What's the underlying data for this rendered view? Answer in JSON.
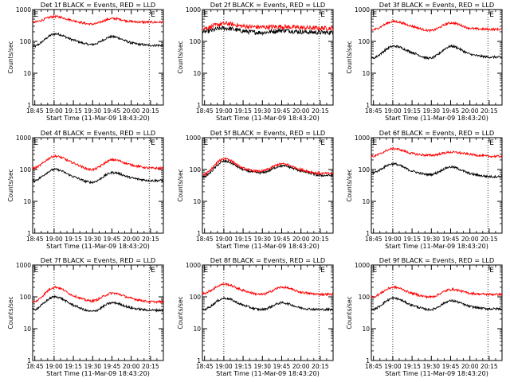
{
  "figure": {
    "x_axis_label": "Start Time (11-Mar-09 18:43:20)",
    "y_axis_label": "Counts/sec",
    "x_tick_labels": [
      "18:45",
      "19:00",
      "19:15",
      "19:30",
      "19:45",
      "20:00",
      "20:15"
    ],
    "y_tick_labels": [
      "1",
      "10",
      "100",
      "1000"
    ],
    "marker_letter": "E",
    "colors": {
      "events": "#000000",
      "lld": "#ff0000",
      "axes": "#000000",
      "background": "#ffffff"
    }
  },
  "chart_data": [
    {
      "type": "line",
      "title": "Det 1f BLACK = Events, RED = LLD",
      "xlabel": "Start Time (11-Mar-09 18:43:20)",
      "ylabel": "Counts/sec",
      "yscale": "log",
      "ylim": [
        1,
        1000
      ],
      "x_unit": "time",
      "x_range": [
        "18:43:20",
        "20:25"
      ],
      "x": [
        "18:45",
        "19:00",
        "19:15",
        "19:30",
        "19:45",
        "20:00",
        "20:15"
      ],
      "series": [
        {
          "name": "Events",
          "color": "#000000",
          "values": [
            70,
            170,
            110,
            80,
            140,
            90,
            75
          ]
        },
        {
          "name": "LLD",
          "color": "#ff0000",
          "values": [
            400,
            600,
            450,
            350,
            520,
            420,
            400
          ]
        }
      ]
    },
    {
      "type": "line",
      "title": "Det 2f BLACK = Events, RED = LLD",
      "xlabel": "Start Time (11-Mar-09 18:43:20)",
      "ylabel": "Counts/sec",
      "yscale": "log",
      "ylim": [
        1,
        1000
      ],
      "x_unit": "time",
      "x_range": [
        "18:43:20",
        "20:25"
      ],
      "x": [
        "18:45",
        "19:00",
        "19:15",
        "19:30",
        "19:45",
        "20:00",
        "20:15"
      ],
      "series": [
        {
          "name": "Events",
          "color": "#000000",
          "values": [
            200,
            260,
            210,
            190,
            220,
            200,
            190
          ]
        },
        {
          "name": "LLD",
          "color": "#ff0000",
          "values": [
            260,
            360,
            300,
            280,
            290,
            270,
            260
          ]
        }
      ]
    },
    {
      "type": "line",
      "title": "Det 3f BLACK = Events, RED = LLD",
      "xlabel": "Start Time (11-Mar-09 18:43:20)",
      "ylabel": "Counts/sec",
      "yscale": "log",
      "ylim": [
        1,
        1000
      ],
      "x_unit": "time",
      "x_range": [
        "18:43:20",
        "20:25"
      ],
      "x": [
        "18:45",
        "19:00",
        "19:15",
        "19:30",
        "19:45",
        "20:00",
        "20:15"
      ],
      "series": [
        {
          "name": "Events",
          "color": "#000000",
          "values": [
            30,
            70,
            45,
            30,
            70,
            40,
            32
          ]
        },
        {
          "name": "LLD",
          "color": "#ff0000",
          "values": [
            230,
            420,
            300,
            220,
            380,
            260,
            240
          ]
        }
      ]
    },
    {
      "type": "line",
      "title": "Det 4f BLACK = Events, RED = LLD",
      "xlabel": "Start Time (11-Mar-09 18:43:20)",
      "ylabel": "Counts/sec",
      "yscale": "log",
      "ylim": [
        1,
        1000
      ],
      "x_unit": "time",
      "x_range": [
        "18:43:20",
        "20:25"
      ],
      "x": [
        "18:45",
        "19:00",
        "19:15",
        "19:30",
        "19:45",
        "20:00",
        "20:15"
      ],
      "series": [
        {
          "name": "Events",
          "color": "#000000",
          "values": [
            45,
            100,
            60,
            40,
            80,
            55,
            45
          ]
        },
        {
          "name": "LLD",
          "color": "#ff0000",
          "values": [
            110,
            260,
            160,
            100,
            200,
            140,
            110
          ]
        }
      ]
    },
    {
      "type": "line",
      "title": "Det 5f BLACK = Events, RED = LLD",
      "xlabel": "Start Time (11-Mar-09 18:43:20)",
      "ylabel": "Counts/sec",
      "yscale": "log",
      "ylim": [
        1,
        1000
      ],
      "x_unit": "time",
      "x_range": [
        "18:43:20",
        "20:25"
      ],
      "x": [
        "18:45",
        "19:00",
        "19:15",
        "19:30",
        "19:45",
        "20:00",
        "20:15"
      ],
      "series": [
        {
          "name": "Events",
          "color": "#000000",
          "values": [
            60,
            180,
            100,
            80,
            130,
            90,
            65
          ]
        },
        {
          "name": "LLD",
          "color": "#ff0000",
          "values": [
            70,
            220,
            110,
            90,
            150,
            100,
            75
          ]
        }
      ]
    },
    {
      "type": "line",
      "title": "Det 6f BLACK = Events, RED = LLD",
      "xlabel": "Start Time (11-Mar-09 18:43:20)",
      "ylabel": "Counts/sec",
      "yscale": "log",
      "ylim": [
        1,
        1000
      ],
      "x_unit": "time",
      "x_range": [
        "18:43:20",
        "20:25"
      ],
      "x": [
        "18:45",
        "19:00",
        "19:15",
        "19:30",
        "19:45",
        "20:00",
        "20:15"
      ],
      "series": [
        {
          "name": "Events",
          "color": "#000000",
          "values": [
            80,
            150,
            90,
            70,
            120,
            75,
            60
          ]
        },
        {
          "name": "LLD",
          "color": "#ff0000",
          "values": [
            260,
            450,
            320,
            280,
            350,
            300,
            260
          ]
        }
      ]
    },
    {
      "type": "line",
      "title": "Det 7f BLACK = Events, RED = LLD",
      "xlabel": "Start Time (11-Mar-09 18:43:20)",
      "ylabel": "Counts/sec",
      "yscale": "log",
      "ylim": [
        1,
        1000
      ],
      "x_unit": "time",
      "x_range": [
        "18:43:20",
        "20:25"
      ],
      "x": [
        "18:45",
        "19:00",
        "19:15",
        "19:30",
        "19:45",
        "20:00",
        "20:15"
      ],
      "series": [
        {
          "name": "Events",
          "color": "#000000",
          "values": [
            40,
            100,
            55,
            35,
            65,
            45,
            38
          ]
        },
        {
          "name": "LLD",
          "color": "#ff0000",
          "values": [
            70,
            200,
            110,
            75,
            130,
            90,
            70
          ]
        }
      ]
    },
    {
      "type": "line",
      "title": "Det 8f BLACK = Events, RED = LLD",
      "xlabel": "Start Time (11-Mar-09 18:43:20)",
      "ylabel": "Counts/sec",
      "yscale": "log",
      "ylim": [
        1,
        1000
      ],
      "x_unit": "time",
      "x_range": [
        "18:43:20",
        "20:25"
      ],
      "x": [
        "18:45",
        "19:00",
        "19:15",
        "19:30",
        "19:45",
        "20:00",
        "20:15"
      ],
      "series": [
        {
          "name": "Events",
          "color": "#000000",
          "values": [
            40,
            90,
            55,
            40,
            65,
            45,
            40
          ]
        },
        {
          "name": "LLD",
          "color": "#ff0000",
          "values": [
            130,
            250,
            160,
            120,
            200,
            140,
            120
          ]
        }
      ]
    },
    {
      "type": "line",
      "title": "Det 9f BLACK = Events, RED = LLD",
      "xlabel": "Start Time (11-Mar-09 18:43:20)",
      "ylabel": "Counts/sec",
      "yscale": "log",
      "ylim": [
        1,
        1000
      ],
      "x_unit": "time",
      "x_range": [
        "18:43:20",
        "20:25"
      ],
      "x": [
        "18:45",
        "19:00",
        "19:15",
        "19:30",
        "19:45",
        "20:00",
        "20:15"
      ],
      "series": [
        {
          "name": "Events",
          "color": "#000000",
          "values": [
            40,
            90,
            55,
            40,
            75,
            50,
            42
          ]
        },
        {
          "name": "LLD",
          "color": "#ff0000",
          "values": [
            100,
            200,
            130,
            100,
            170,
            130,
            120
          ]
        }
      ]
    }
  ]
}
